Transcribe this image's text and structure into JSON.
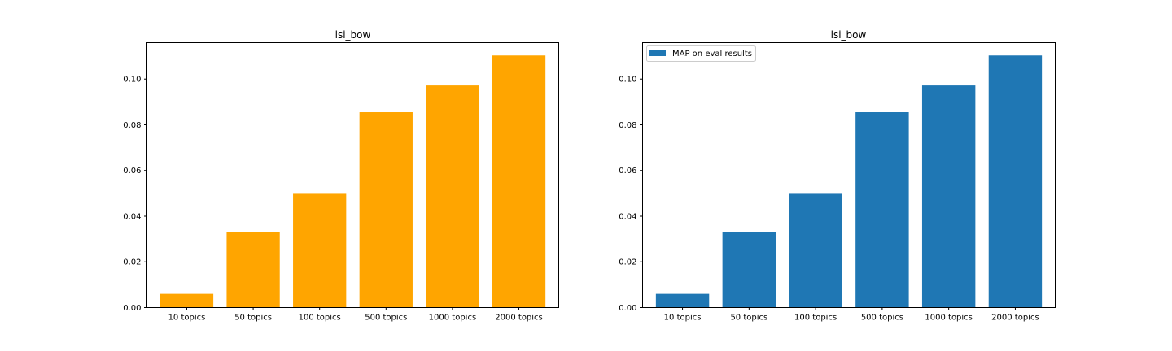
{
  "chart_data": [
    {
      "type": "bar",
      "title": "lsi_bow",
      "xlabel": "",
      "ylabel": "",
      "categories": [
        "10 topics",
        "50 topics",
        "100 topics",
        "500 topics",
        "1000 topics",
        "2000 topics"
      ],
      "values": [
        0.006,
        0.0332,
        0.0498,
        0.0855,
        0.0972,
        0.1103
      ],
      "ylim": [
        0,
        0.1159
      ],
      "yticks": [
        0.0,
        0.02,
        0.04,
        0.06,
        0.08,
        0.1
      ],
      "ytick_labels": [
        "0.00",
        "0.02",
        "0.04",
        "0.06",
        "0.08",
        "0.10"
      ],
      "color": "#ffa500",
      "legend": null,
      "grid": false
    },
    {
      "type": "bar",
      "title": "lsi_bow",
      "xlabel": "",
      "ylabel": "",
      "categories": [
        "10 topics",
        "50 topics",
        "100 topics",
        "500 topics",
        "1000 topics",
        "2000 topics"
      ],
      "series": [
        {
          "name": "MAP on eval results",
          "values": [
            0.006,
            0.0332,
            0.0498,
            0.0855,
            0.0972,
            0.1103
          ]
        }
      ],
      "ylim": [
        0,
        0.1159
      ],
      "yticks": [
        0.0,
        0.02,
        0.04,
        0.06,
        0.08,
        0.1
      ],
      "ytick_labels": [
        "0.00",
        "0.02",
        "0.04",
        "0.06",
        "0.08",
        "0.10"
      ],
      "color": "#1f77b4",
      "legend": "upper-left",
      "grid": false
    }
  ]
}
